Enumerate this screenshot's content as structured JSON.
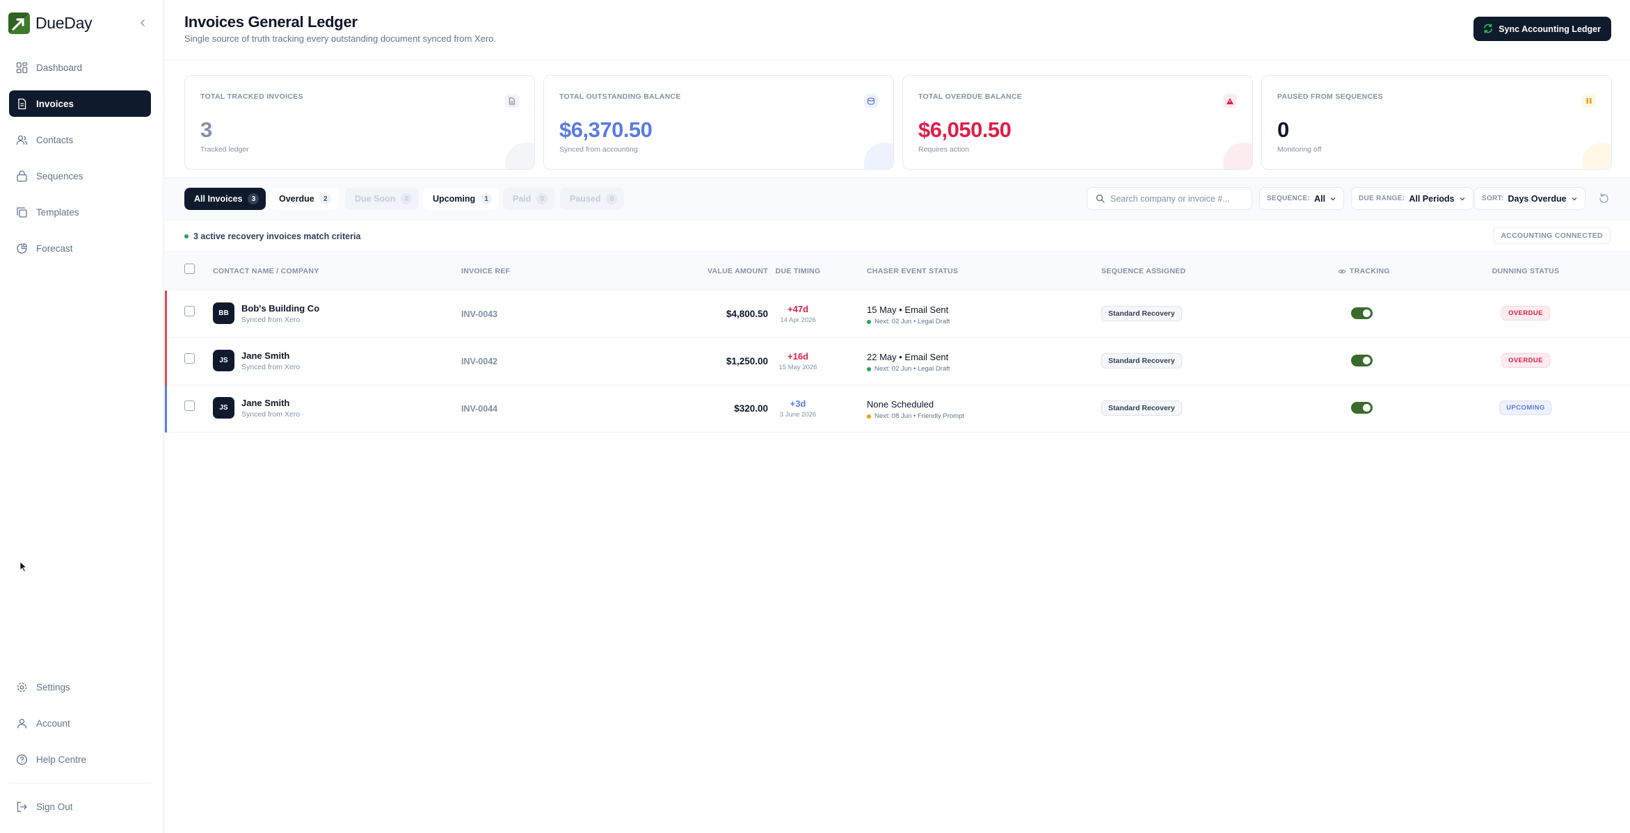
{
  "brand": {
    "name": "DueDay"
  },
  "sidebar": {
    "items": [
      {
        "label": "Dashboard",
        "icon": "dashboard-icon"
      },
      {
        "label": "Invoices",
        "icon": "invoice-icon",
        "active": true
      },
      {
        "label": "Contacts",
        "icon": "contacts-icon"
      },
      {
        "label": "Sequences",
        "icon": "sequences-icon"
      },
      {
        "label": "Templates",
        "icon": "templates-icon"
      },
      {
        "label": "Forecast",
        "icon": "forecast-icon"
      }
    ],
    "bottom": [
      {
        "label": "Settings",
        "icon": "gear-icon"
      },
      {
        "label": "Account",
        "icon": "user-icon"
      },
      {
        "label": "Help Centre",
        "icon": "help-icon"
      },
      {
        "label": "Sign Out",
        "icon": "sign-out-icon"
      }
    ]
  },
  "header": {
    "title": "Invoices General Ledger",
    "subtitle": "Single source of truth tracking every outstanding document synced from Xero.",
    "sync_label": "Sync Accounting Ledger"
  },
  "cards": [
    {
      "label": "TOTAL TRACKED INVOICES",
      "value": "3",
      "sub": "Tracked ledger",
      "color": "#8391a7"
    },
    {
      "label": "TOTAL OUTSTANDING BALANCE",
      "value": "$6,370.50",
      "sub": "Synced from accounting",
      "color": "#5b7be0"
    },
    {
      "label": "TOTAL OVERDUE BALANCE",
      "value": "$6,050.50",
      "sub": "Requires action",
      "color": "#e11d48"
    },
    {
      "label": "PAUSED FROM SEQUENCES",
      "value": "0",
      "sub": "Monitoring off",
      "color": "#0f172a"
    }
  ],
  "tabs": [
    {
      "label": "All Invoices",
      "count": "3"
    },
    {
      "label": "Overdue",
      "count": "2"
    },
    {
      "label": "Due Soon",
      "count": "0"
    },
    {
      "label": "Upcoming",
      "count": "1"
    },
    {
      "label": "Paid",
      "count": "0"
    },
    {
      "label": "Paused",
      "count": "0"
    }
  ],
  "filters": {
    "search_placeholder": "Search company or invoice #...",
    "sequence_key": "SEQUENCE:",
    "sequence_value": "All",
    "due_key": "DUE RANGE:",
    "due_value": "All Periods",
    "sort_key": "SORT:",
    "sort_value": "Days Overdue"
  },
  "info": {
    "match_text": "3 active recovery invoices match criteria",
    "accounting_badge": "ACCOUNTING CONNECTED"
  },
  "table": {
    "headers": [
      "CONTACT NAME / COMPANY",
      "INVOICE REF",
      "VALUE AMOUNT",
      "DUE TIMING",
      "CHASER EVENT STATUS",
      "SEQUENCE ASSIGNED",
      "TRACKING",
      "DUNNING STATUS"
    ],
    "rows": [
      {
        "initials": "BB",
        "name": "Bob's Building Co",
        "source": "Synced from Xero",
        "ref": "INV-0043",
        "amount": "$4,800.50",
        "due": "+47d",
        "due_date": "14 Apr 2026",
        "event": "15 May • Email Sent",
        "next": "Next: 02 Jun • Legal Draft",
        "sequence": "Standard Recovery",
        "status": "OVERDUE",
        "bar_color": "#e5484d",
        "due_color": "#e11d48",
        "next_dot": "#22a35a",
        "tracking": true
      },
      {
        "initials": "JS",
        "name": "Jane Smith",
        "source": "Synced from Xero",
        "ref": "INV-0042",
        "amount": "$1,250.00",
        "due": "+16d",
        "due_date": "15 May 2026",
        "event": "22 May • Email Sent",
        "next": "Next: 02 Jun • Legal Draft",
        "sequence": "Standard Recovery",
        "status": "OVERDUE",
        "bar_color": "#e5484d",
        "due_color": "#e11d48",
        "next_dot": "#22a35a",
        "tracking": true
      },
      {
        "initials": "JS",
        "name": "Jane Smith",
        "source": "Synced from Xero",
        "ref": "INV-0044",
        "amount": "$320.00",
        "due": "+3d",
        "due_date": "3 June 2026",
        "event": "None Scheduled",
        "next": "Next: 08 Jun • Friendly Prompt",
        "sequence": "Standard Recovery",
        "status": "UPCOMING",
        "bar_color": "#5b7be0",
        "due_color": "#5b7be0",
        "next_dot": "#f59e0b",
        "tracking": true
      }
    ]
  }
}
